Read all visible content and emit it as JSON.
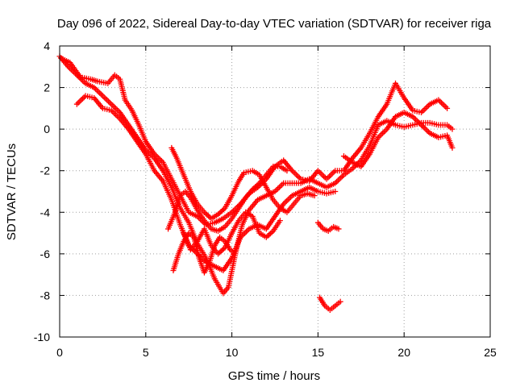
{
  "chart_data": {
    "type": "scatter",
    "title": "Day 096 of 2022, Sidereal Day-to-day VTEC variation (SDTVAR) for receiver riga",
    "xlabel": "GPS time / hours",
    "ylabel": "SDTVAR / TECUs",
    "xlim": [
      0,
      25
    ],
    "ylim": [
      -10,
      4
    ],
    "xticks": [
      0,
      5,
      10,
      15,
      20,
      25
    ],
    "yticks": [
      -10,
      -8,
      -6,
      -4,
      -2,
      0,
      2,
      4
    ],
    "grid": true,
    "marker": "+",
    "color": "#ff0000",
    "series": [
      {
        "values": [
          [
            0,
            3.5
          ],
          [
            0.5,
            3.0
          ],
          [
            1.0,
            2.6
          ],
          [
            1.5,
            2.2
          ],
          [
            2.0,
            2.0
          ],
          [
            2.5,
            1.6
          ],
          [
            3.0,
            1.2
          ],
          [
            3.5,
            0.8
          ],
          [
            4.0,
            0.2
          ],
          [
            4.5,
            -0.4
          ],
          [
            5.0,
            -1.0
          ],
          [
            5.5,
            -1.4
          ],
          [
            6.0,
            -2.0
          ],
          [
            6.5,
            -2.8
          ],
          [
            7.0,
            -3.8
          ],
          [
            7.5,
            -4.5
          ],
          [
            8.0,
            -5.5
          ],
          [
            8.5,
            -6.2
          ],
          [
            9.0,
            -7.2
          ],
          [
            9.5,
            -7.9
          ],
          [
            9.8,
            -7.6
          ],
          [
            10.2,
            -6.0
          ],
          [
            10.6,
            -4.6
          ],
          [
            11.0,
            -3.9
          ],
          [
            11.5,
            -3.4
          ],
          [
            12.0,
            -3.2
          ],
          [
            12.5,
            -3.0
          ],
          [
            13.0,
            -2.6
          ],
          [
            13.5,
            -2.6
          ],
          [
            14.0,
            -2.6
          ],
          [
            14.5,
            -2.4
          ],
          [
            15.0,
            -2.6
          ],
          [
            15.5,
            -2.8
          ],
          [
            16.0,
            -2.6
          ],
          [
            16.5,
            -2.2
          ],
          [
            17.0,
            -1.9
          ],
          [
            17.5,
            -1.5
          ],
          [
            18.0,
            -0.8
          ],
          [
            18.5,
            0.2
          ],
          [
            19.0,
            0.4
          ],
          [
            19.5,
            0.2
          ],
          [
            20.0,
            0.1
          ],
          [
            20.5,
            0.2
          ],
          [
            21.0,
            0.3
          ],
          [
            21.5,
            0.3
          ],
          [
            22.0,
            0.2
          ],
          [
            22.5,
            0.2
          ],
          [
            22.8,
            0.0
          ]
        ]
      },
      {
        "values": [
          [
            0.1,
            3.4
          ],
          [
            0.6,
            3.2
          ],
          [
            1.2,
            2.5
          ],
          [
            1.8,
            2.4
          ],
          [
            2.2,
            2.3
          ],
          [
            2.8,
            2.2
          ],
          [
            3.2,
            2.6
          ],
          [
            3.5,
            2.4
          ],
          [
            3.8,
            1.4
          ],
          [
            4.2,
            0.9
          ],
          [
            4.6,
            0.2
          ],
          [
            5.0,
            -0.6
          ],
          [
            5.5,
            -1.2
          ],
          [
            6.0,
            -1.6
          ],
          [
            6.5,
            -2.4
          ],
          [
            7.0,
            -3.2
          ],
          [
            7.5,
            -4.0
          ],
          [
            8.0,
            -4.2
          ],
          [
            8.5,
            -4.6
          ],
          [
            9.0,
            -4.5
          ],
          [
            9.5,
            -4.3
          ],
          [
            10.0,
            -4.0
          ],
          [
            10.5,
            -3.6
          ],
          [
            11.0,
            -3.1
          ],
          [
            11.5,
            -2.8
          ],
          [
            12.0,
            -2.4
          ],
          [
            12.5,
            -1.8
          ],
          [
            13.0,
            -1.5
          ],
          [
            13.5,
            -2.0
          ],
          [
            14.0,
            -2.4
          ],
          [
            14.5,
            -2.5
          ],
          [
            15.0,
            -2.0
          ],
          [
            15.5,
            -2.4
          ],
          [
            16.0,
            -2.0
          ],
          [
            16.5,
            -2.0
          ],
          [
            17.0,
            -1.4
          ],
          [
            17.5,
            -0.9
          ],
          [
            18.0,
            -0.2
          ],
          [
            18.5,
            0.6
          ],
          [
            19.0,
            1.2
          ],
          [
            19.5,
            2.2
          ],
          [
            20.0,
            1.5
          ],
          [
            20.5,
            0.9
          ],
          [
            21.0,
            0.8
          ],
          [
            21.5,
            1.2
          ],
          [
            22.0,
            1.4
          ],
          [
            22.5,
            1.0
          ]
        ]
      },
      {
        "values": [
          [
            1.0,
            1.2
          ],
          [
            1.5,
            1.6
          ],
          [
            2.0,
            1.5
          ],
          [
            2.5,
            1.0
          ],
          [
            3.0,
            0.9
          ],
          [
            3.5,
            0.5
          ],
          [
            4.0,
            0.0
          ],
          [
            4.5,
            -0.6
          ],
          [
            5.0,
            -1.2
          ],
          [
            5.5,
            -2.0
          ],
          [
            6.0,
            -2.5
          ],
          [
            6.5,
            -3.4
          ],
          [
            7.0,
            -4.6
          ],
          [
            7.5,
            -5.6
          ],
          [
            8.0,
            -6.0
          ],
          [
            8.5,
            -6.4
          ],
          [
            9.0,
            -6.6
          ],
          [
            9.5,
            -6.8
          ],
          [
            10.0,
            -6.2
          ],
          [
            10.5,
            -5.2
          ],
          [
            11.0,
            -4.8
          ],
          [
            11.5,
            -4.6
          ],
          [
            12.0,
            -4.8
          ],
          [
            12.5,
            -4.2
          ],
          [
            13.0,
            -3.6
          ],
          [
            13.5,
            -3.2
          ],
          [
            14.0,
            -3.0
          ],
          [
            14.5,
            -2.8
          ],
          [
            15.0,
            -3.0
          ],
          [
            15.5,
            -3.1
          ],
          [
            16.0,
            -3.0
          ]
        ]
      },
      {
        "values": [
          [
            6.5,
            -0.9
          ],
          [
            6.8,
            -1.4
          ],
          [
            7.2,
            -2.2
          ],
          [
            7.6,
            -3.0
          ],
          [
            8.0,
            -3.6
          ],
          [
            8.4,
            -4.0
          ],
          [
            8.8,
            -4.3
          ],
          [
            9.2,
            -4.1
          ],
          [
            9.6,
            -3.8
          ],
          [
            10.0,
            -3.2
          ],
          [
            10.4,
            -2.5
          ],
          [
            10.7,
            -2.1
          ],
          [
            11.2,
            -2.0
          ],
          [
            11.6,
            -2.2
          ],
          [
            12.0,
            -2.8
          ],
          [
            12.4,
            -3.4
          ],
          [
            12.8,
            -3.8
          ],
          [
            13.2,
            -4.0
          ],
          [
            13.6,
            -3.6
          ],
          [
            14.0,
            -3.2
          ],
          [
            14.4,
            -3.1
          ],
          [
            14.8,
            -3.2
          ]
        ]
      },
      {
        "values": [
          [
            6.3,
            -4.8
          ],
          [
            6.7,
            -4.0
          ],
          [
            7.0,
            -3.2
          ],
          [
            7.3,
            -3.0
          ],
          [
            7.6,
            -3.3
          ],
          [
            8.0,
            -3.9
          ],
          [
            8.4,
            -4.4
          ],
          [
            8.8,
            -4.8
          ],
          [
            9.2,
            -4.9
          ],
          [
            9.6,
            -4.7
          ],
          [
            10.0,
            -4.3
          ],
          [
            10.4,
            -3.8
          ],
          [
            10.8,
            -3.3
          ],
          [
            11.2,
            -2.9
          ],
          [
            11.6,
            -2.6
          ],
          [
            12.0,
            -2.2
          ],
          [
            12.4,
            -1.8
          ],
          [
            12.8,
            -1.8
          ],
          [
            13.2,
            -2.0
          ]
        ]
      },
      {
        "values": [
          [
            6.6,
            -6.8
          ],
          [
            6.9,
            -6.0
          ],
          [
            7.2,
            -5.4
          ],
          [
            7.5,
            -5.0
          ],
          [
            7.8,
            -5.2
          ],
          [
            8.1,
            -6.2
          ],
          [
            8.4,
            -6.9
          ],
          [
            8.7,
            -6.4
          ],
          [
            9.0,
            -5.6
          ],
          [
            9.3,
            -5.2
          ],
          [
            9.6,
            -5.4
          ],
          [
            9.9,
            -5.8
          ],
          [
            10.2,
            -6.0
          ]
        ]
      },
      {
        "values": [
          [
            7.2,
            -5.0
          ],
          [
            7.6,
            -5.8
          ],
          [
            8.0,
            -5.4
          ],
          [
            8.4,
            -4.8
          ],
          [
            8.8,
            -5.6
          ],
          [
            9.2,
            -6.0
          ],
          [
            9.6,
            -5.7
          ],
          [
            10.0,
            -5.0
          ],
          [
            10.4,
            -4.4
          ],
          [
            10.8,
            -4.0
          ],
          [
            11.2,
            -4.2
          ],
          [
            11.6,
            -5.0
          ],
          [
            12.0,
            -5.2
          ],
          [
            12.4,
            -4.9
          ],
          [
            12.8,
            -4.4
          ]
        ]
      },
      {
        "values": [
          [
            15.0,
            -4.5
          ],
          [
            15.3,
            -4.8
          ],
          [
            15.6,
            -4.9
          ],
          [
            15.9,
            -4.7
          ],
          [
            16.2,
            -4.8
          ]
        ]
      },
      {
        "values": [
          [
            15.1,
            -8.1
          ],
          [
            15.4,
            -8.5
          ],
          [
            15.7,
            -8.7
          ],
          [
            16.0,
            -8.5
          ],
          [
            16.3,
            -8.3
          ]
        ]
      },
      {
        "values": [
          [
            16.5,
            -1.3
          ],
          [
            17.0,
            -1.6
          ],
          [
            17.5,
            -1.8
          ],
          [
            18.0,
            -1.2
          ],
          [
            18.5,
            -0.4
          ],
          [
            19.0,
            0.0
          ],
          [
            19.5,
            0.6
          ],
          [
            20.0,
            0.8
          ],
          [
            20.5,
            0.6
          ],
          [
            21.0,
            0.2
          ],
          [
            21.5,
            -0.2
          ],
          [
            22.0,
            -0.4
          ],
          [
            22.5,
            -0.3
          ],
          [
            22.8,
            -0.9
          ]
        ]
      }
    ]
  }
}
